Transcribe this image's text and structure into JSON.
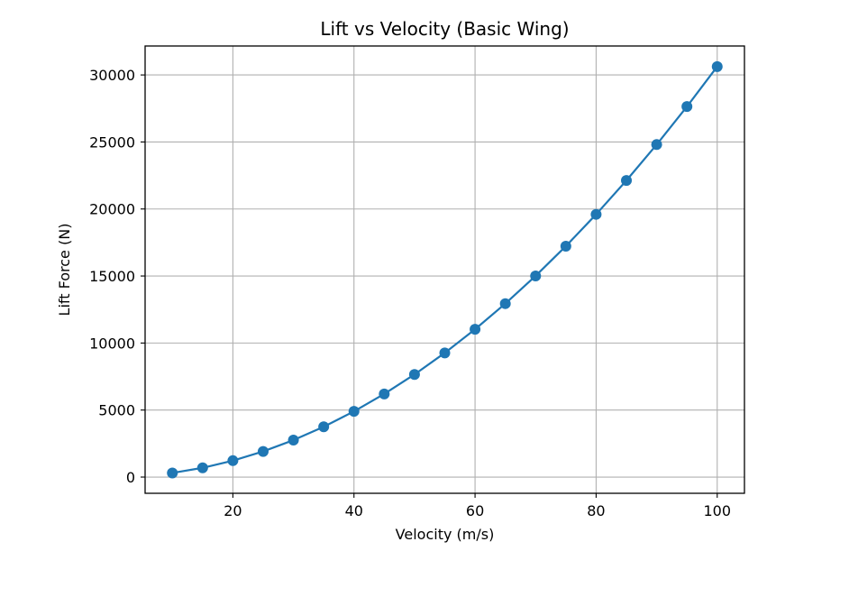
{
  "chart_data": {
    "type": "line",
    "title": "Lift vs Velocity (Basic Wing)",
    "xlabel": "Velocity (m/s)",
    "ylabel": "Lift Force (N)",
    "x": [
      10,
      15,
      20,
      25,
      30,
      35,
      40,
      45,
      50,
      55,
      60,
      65,
      70,
      75,
      80,
      85,
      90,
      95,
      100
    ],
    "series": [
      {
        "values": [
          306,
          689,
          1225,
          1914,
          2756,
          3752,
          4900,
          6202,
          7656,
          9264,
          11025,
          12939,
          15006,
          17227,
          19600,
          22127,
          24806,
          27640,
          30625
        ],
        "color": "#1f77b4",
        "marker": "circle"
      }
    ],
    "xlim": [
      5.5,
      104.5
    ],
    "ylim": [
      -1210,
      32160
    ],
    "xticks": [
      20,
      40,
      60,
      80,
      100
    ],
    "yticks": [
      0,
      5000,
      10000,
      15000,
      20000,
      25000,
      30000
    ],
    "grid": true,
    "legend": "none"
  }
}
